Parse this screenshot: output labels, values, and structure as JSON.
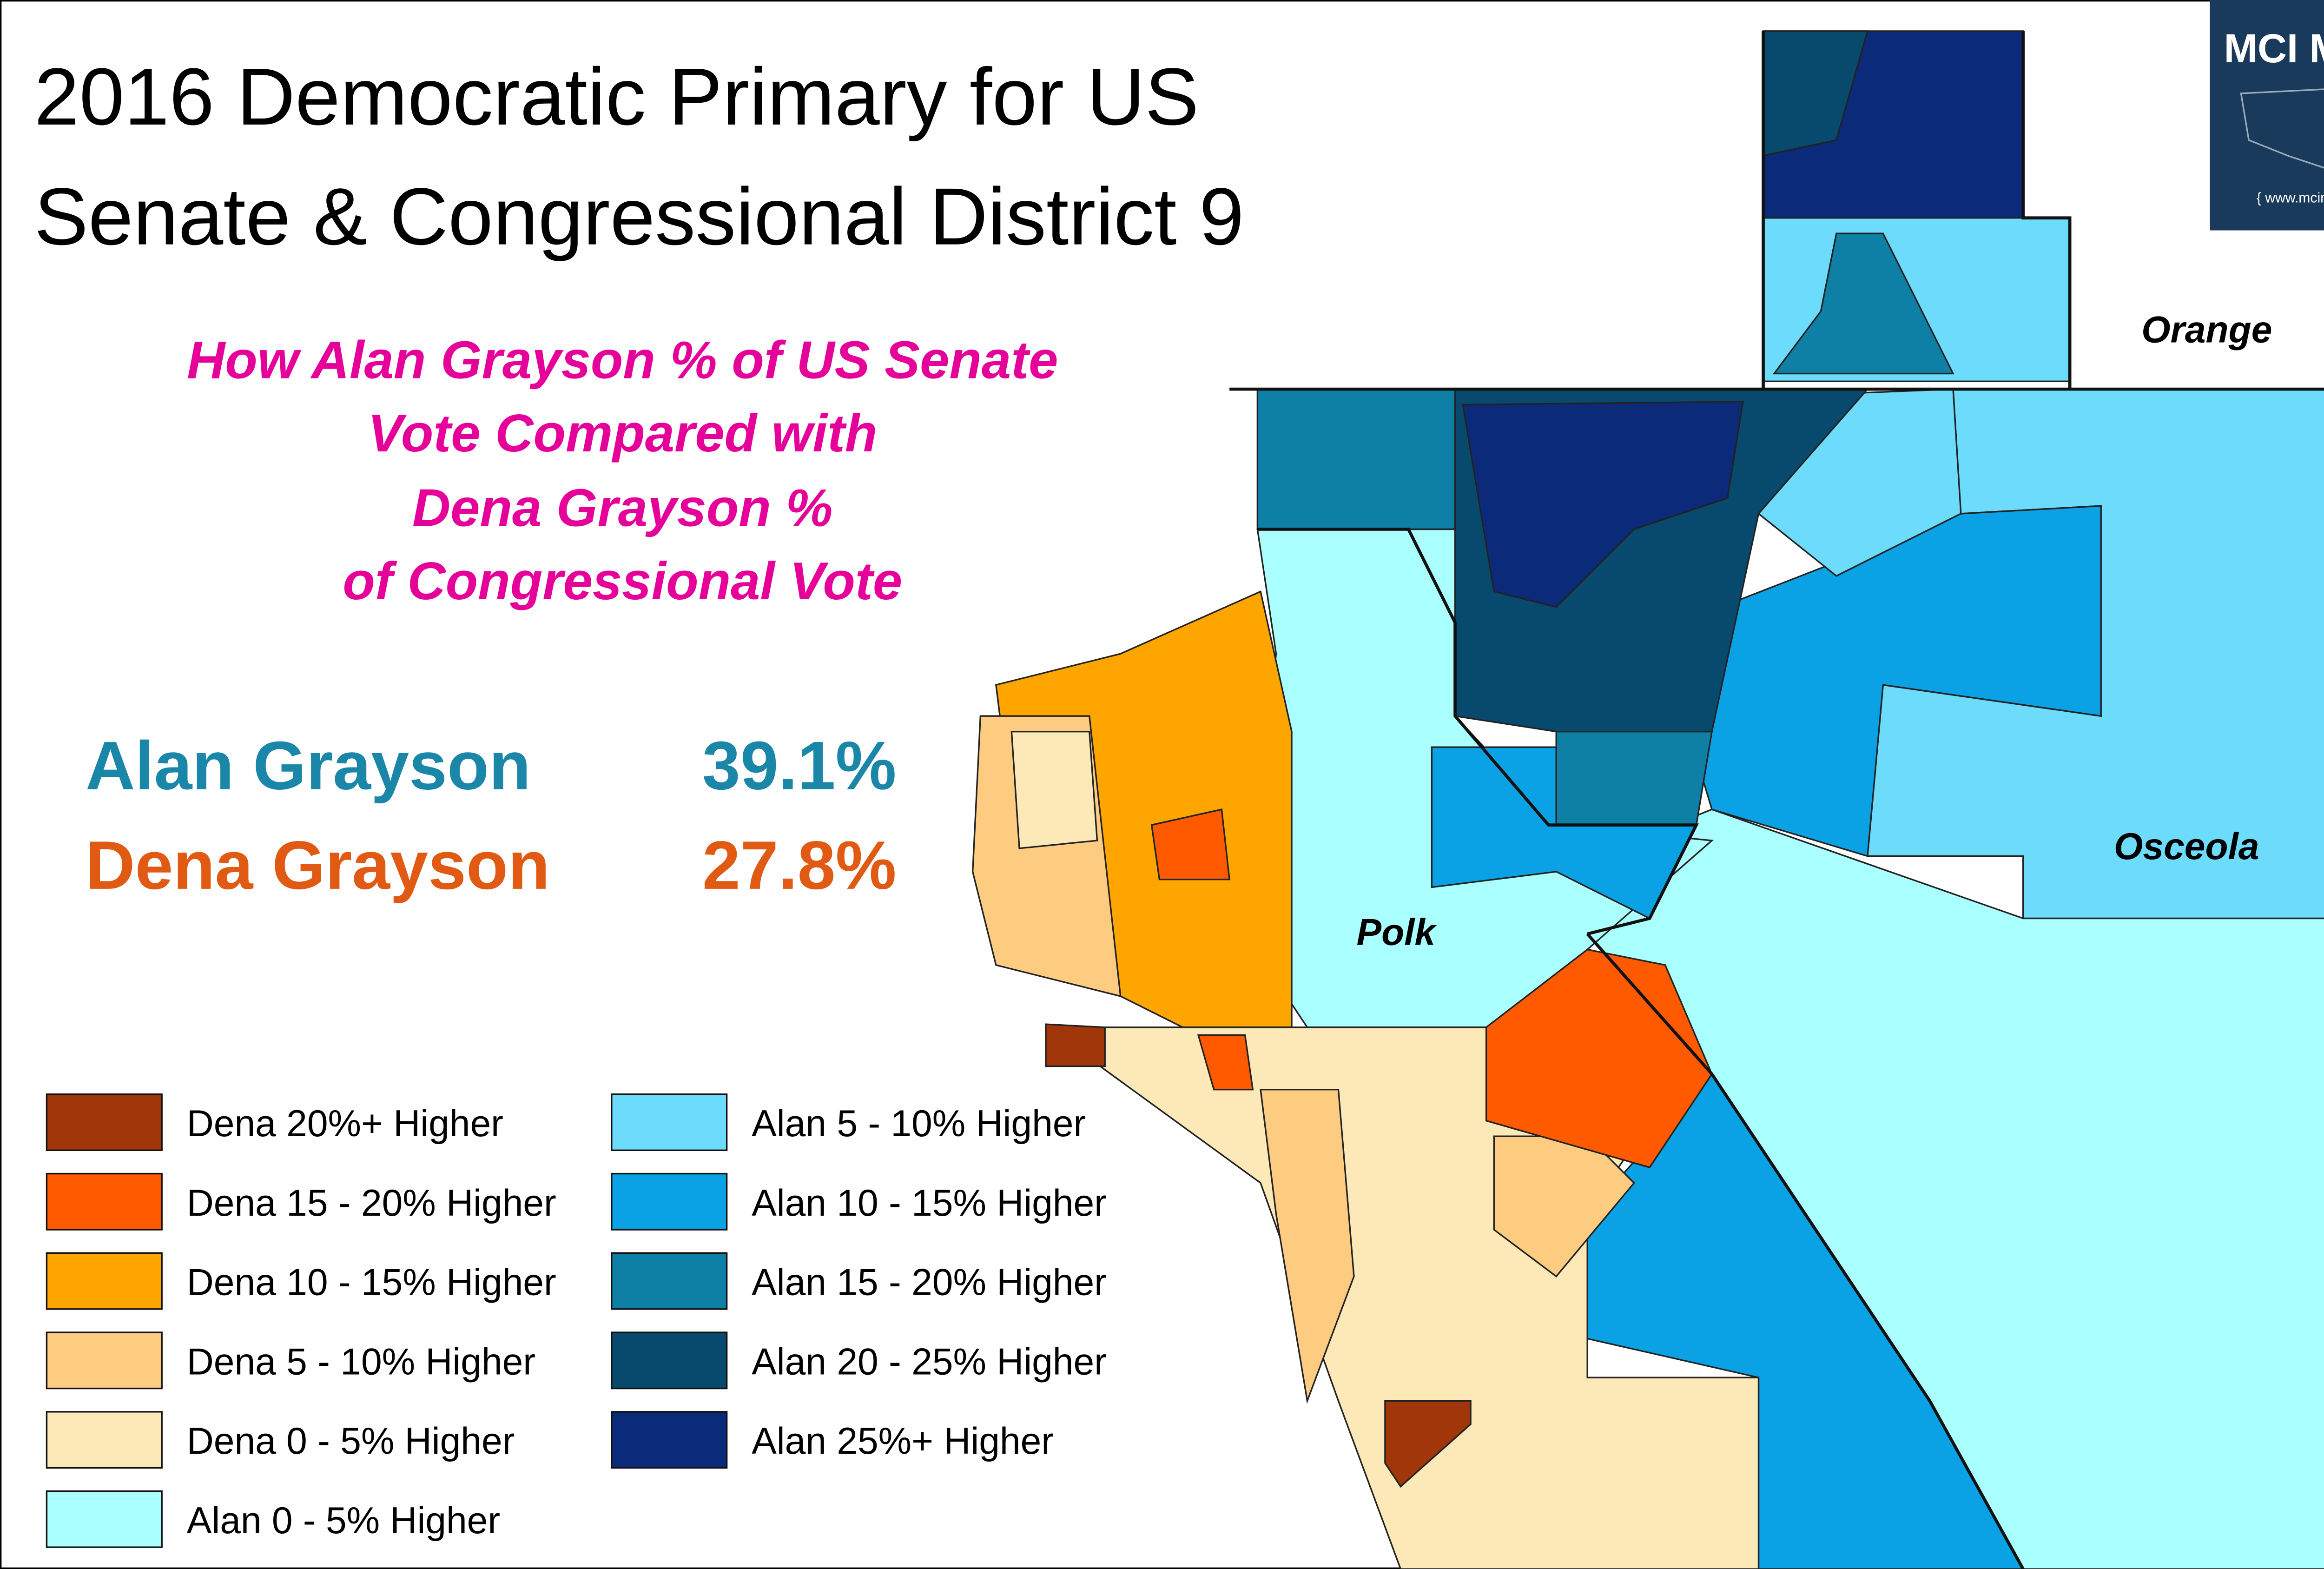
{
  "header": {
    "title": [
      "2016 Democratic Primary for US",
      "Senate & Congressional District 9"
    ],
    "subtitle": [
      "How Alan Grayson % of US Senate",
      "Vote Compared with",
      "Dena Grayson %",
      "of Congressional Vote"
    ]
  },
  "results": [
    {
      "name": "Alan Grayson",
      "value": "39.1%",
      "color": "#1a86a8"
    },
    {
      "name": "Dena Grayson",
      "value": "27.8%",
      "color": "#e05a14"
    }
  ],
  "legend": [
    {
      "label": "Dena 20%+ Higher",
      "color": "#a0360a"
    },
    {
      "label": "Dena 15 - 20% Higher",
      "color": "#ff5a00"
    },
    {
      "label": "Dena 10 - 15% Higher",
      "color": "#ffa500"
    },
    {
      "label": "Dena 5 - 10% Higher",
      "color": "#fdcc80"
    },
    {
      "label": "Dena 0 - 5% Higher",
      "color": "#fde8b8"
    },
    {
      "label": "Alan 0 - 5% Higher",
      "color": "#aaffff"
    },
    {
      "label": "Alan 5 - 10% Higher",
      "color": "#6ddcfc"
    },
    {
      "label": "Alan 10 - 15% Higher",
      "color": "#0aa2e4"
    },
    {
      "label": "Alan 15 - 20% Higher",
      "color": "#0e7fa5"
    },
    {
      "label": "Alan 20 - 25% Higher",
      "color": "#074a6e"
    },
    {
      "label": "Alan 25%+ Higher",
      "color": "#0b2a7a"
    }
  ],
  "counties": [
    "Orange",
    "Osceola",
    "Polk"
  ],
  "logo": {
    "title": "MCI MAPS",
    "url": "{ www.mcimaps.com }"
  }
}
